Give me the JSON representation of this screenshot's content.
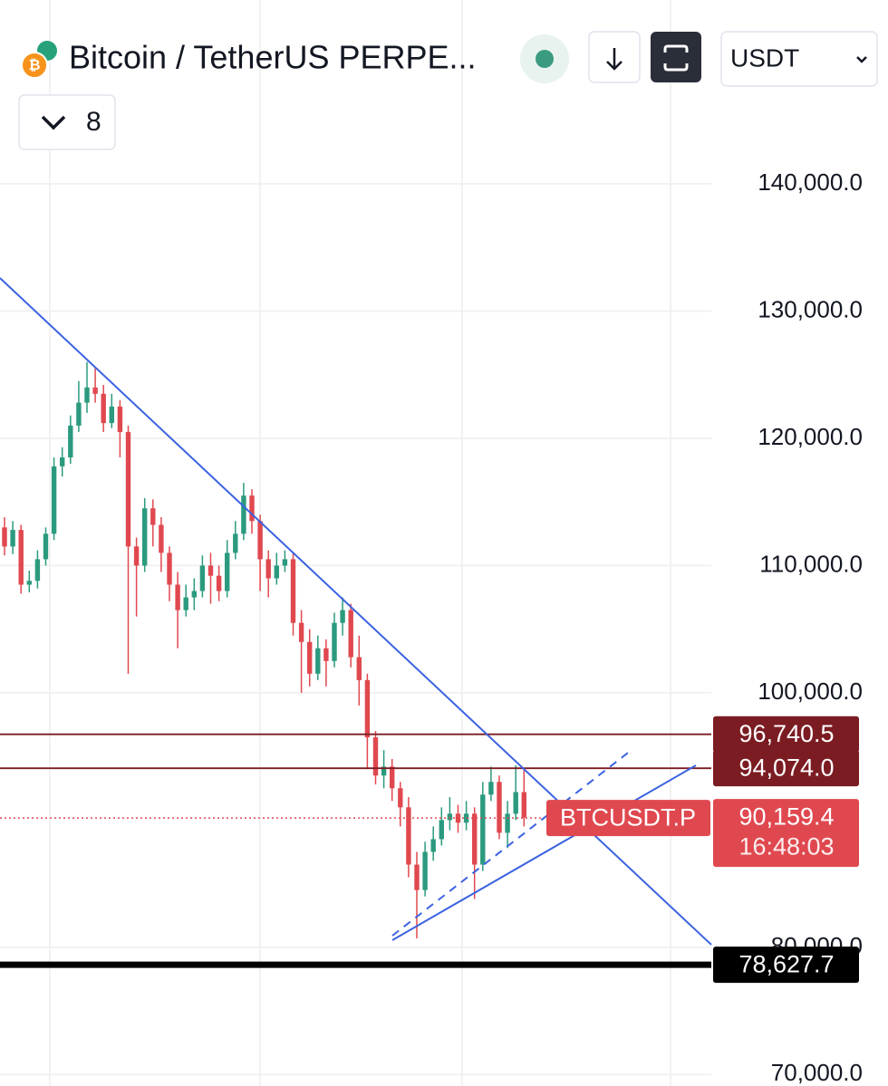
{
  "chart_data": {
    "type": "candlestick",
    "title": "Bitcoin / TetherUS PERPE...",
    "open": [
      113000,
      111500,
      112800,
      108500,
      108800,
      110500,
      112500,
      117800,
      118500,
      121000,
      122800,
      124000,
      123500,
      121200,
      122500,
      120500,
      111500,
      110000,
      114500,
      113200,
      111000,
      108500,
      106500,
      107500,
      108000,
      110000,
      109200,
      108000,
      111000,
      112500,
      115500,
      113500,
      110500,
      109000,
      110000,
      110500,
      105500,
      104000,
      101500,
      103500,
      102500,
      105500,
      106500,
      102800,
      101000,
      96500,
      93500,
      94200,
      92500,
      91000,
      86500,
      84500,
      87500,
      88500,
      90000,
      90500,
      89800,
      90500,
      86500,
      92000,
      93000,
      89000,
      90500,
      92200
    ],
    "high": [
      113800,
      113500,
      113200,
      109600,
      111200,
      113000,
      118500,
      119300,
      121800,
      124500,
      126000,
      125500,
      124200,
      123500,
      123000,
      121000,
      112200,
      115300,
      115200,
      113800,
      111500,
      109500,
      108500,
      109000,
      110800,
      111000,
      110000,
      112000,
      113500,
      116500,
      116000,
      114000,
      111200,
      111000,
      111200,
      111000,
      106500,
      105000,
      104500,
      104200,
      106300,
      107500,
      107000,
      104500,
      101500,
      97000,
      95500,
      94800,
      93000,
      91800,
      87500,
      88300,
      89500,
      91000,
      91800,
      91200,
      91500,
      91000,
      93000,
      94200,
      93500,
      91500,
      94300,
      94000
    ],
    "low": [
      110800,
      110900,
      107800,
      107900,
      108200,
      110000,
      112000,
      117000,
      118000,
      120500,
      122000,
      122800,
      120500,
      120800,
      118500,
      101500,
      106000,
      109500,
      111500,
      109500,
      107200,
      103500,
      106000,
      106500,
      107500,
      107000,
      107200,
      107500,
      110500,
      112000,
      112500,
      108000,
      107500,
      108500,
      109500,
      104500,
      100000,
      100500,
      101000,
      100500,
      102000,
      104500,
      102000,
      99000,
      94000,
      92800,
      92500,
      91500,
      89500,
      85500,
      80700,
      84000,
      86800,
      88000,
      89200,
      89000,
      89200,
      83800,
      86000,
      91500,
      88500,
      87800,
      90000,
      89500
    ],
    "close": [
      111500,
      112800,
      108500,
      108800,
      110500,
      112500,
      117800,
      118500,
      121000,
      122800,
      124000,
      123500,
      121200,
      122500,
      120500,
      111500,
      110000,
      114500,
      113200,
      111000,
      108500,
      106500,
      107500,
      108000,
      110000,
      109200,
      108000,
      111000,
      112500,
      115500,
      113500,
      110500,
      109000,
      110000,
      110500,
      105500,
      104000,
      101500,
      103500,
      102500,
      105500,
      106500,
      102800,
      101000,
      96500,
      93500,
      94200,
      92500,
      91000,
      86500,
      84500,
      87500,
      88500,
      90000,
      90500,
      89800,
      90500,
      86500,
      92000,
      93000,
      89000,
      90500,
      92200,
      90200
    ],
    "up_color": "#2b9a7e",
    "down_color": "#e0484f",
    "ylim": [
      69100,
      154450
    ],
    "yticks": [
      {
        "value": 70000,
        "label": "70,000.0"
      },
      {
        "value": 80000,
        "label": "80,000.0"
      },
      {
        "value": 100000,
        "label": "100,000.0"
      },
      {
        "value": 110000,
        "label": "110,000.0"
      },
      {
        "value": 120000,
        "label": "120,000.0"
      },
      {
        "value": 130000,
        "label": "130,000.0"
      },
      {
        "value": 140000,
        "label": "140,000.0"
      }
    ],
    "grid": true,
    "levels": [
      {
        "value": 96740.5,
        "label": "96,740.5",
        "color": "#7b1c22"
      },
      {
        "value": 94074.0,
        "label": "94,074.0",
        "color": "#7b1c22"
      },
      {
        "value": 78627.7,
        "label": "78,627.7",
        "color": "#000000"
      }
    ],
    "last_price": {
      "value": 90159.4,
      "label": "90,159.4",
      "symbol": "BTCUSDT.P",
      "countdown": "16:48:03",
      "color": "#e0484f"
    }
  },
  "toolbar": {
    "currency": "USDT",
    "indicators": "8"
  }
}
